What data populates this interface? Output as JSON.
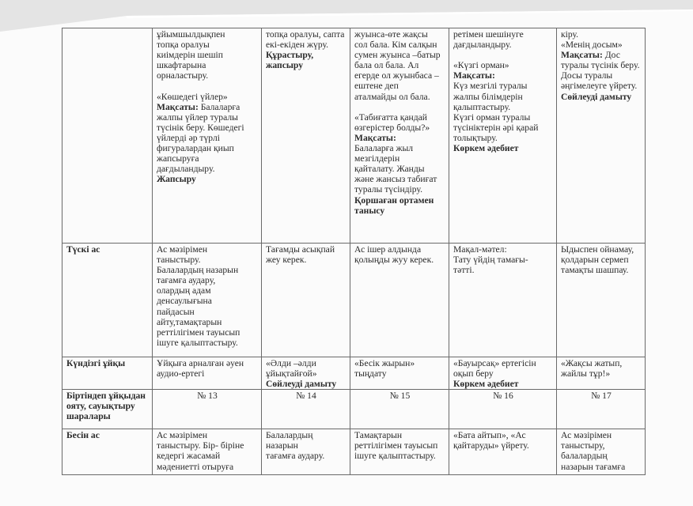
{
  "table": {
    "rows": [
      {
        "label": "",
        "cells": [
          [
            {
              "t": "ұйымшылдықпен\nтопқа оралуы\nкиімдерін шешіп\nшкафтарына\nорналастыру.\n\n«Көшедегі үйлер»\n"
            },
            {
              "t": "Мақсаты:",
              "b": true
            },
            {
              "t": " Балаларға\nжалпы үйлер туралы\nтүсінік беру. Көшедегі\nүйлерді әр түрлі\nфигуралардан қиып\nжапсыруға\nдағдыландыру.\n"
            },
            {
              "t": "Жапсыру",
              "b": true
            }
          ],
          [
            {
              "t": "топқа оралуы, сапта\nекі-екіден жүру.\n"
            },
            {
              "t": "Құрастыру,\nжапсыру",
              "b": true
            }
          ],
          [
            {
              "t": "жуынса-өте жақсы\nсол бала. Кім салқын\nсумен жуынса –батыр\nбала ол бала. Ал\nегерде ол жуынбаса –\nештене деп\nаталмайды ол бала.\n\n«Табиғатта қандай\nөзгерістер болды?»\n"
            },
            {
              "t": "Мақсаты:",
              "b": true
            },
            {
              "t": "\nБалаларға жыл\nмезгілдерін\nқайталату. Жанды\nжәне жансыз табиғат\nтуралы түсіндіру.\n"
            },
            {
              "t": "Қоршаған ортамен\nтанысу",
              "b": true
            }
          ],
          [
            {
              "t": "ретімен шешінуге\nдағдыландыру.\n\n«Күзгі орман»\n"
            },
            {
              "t": "Мақсаты:",
              "b": true
            },
            {
              "t": "\nКүз мезгілі туралы\nжалпы білімдерін\nқалыптастыру.\n Күзгі орман  туралы\nтүсініктерін әрі қарай\nтолықтыру.\n"
            },
            {
              "t": "Көркем әдебиет",
              "b": true
            }
          ],
          [
            {
              "t": "кіру.\n «Менің досым»\n"
            },
            {
              "t": "Мақсаты:",
              "b": true
            },
            {
              "t": " Дос\nтуралы түсінік беру.\nДосы туралы\nәңгімелеуге үйрету.\n"
            },
            {
              "t": "Сөйлеуді дамыту",
              "b": true
            }
          ]
        ]
      },
      {
        "label": "Түскі ас",
        "cells": [
          [
            {
              "t": "Ас мәзірімен\nтаныстыру.\nБалалардың назарын\nтағамға аудару,\nолардың адам\nденсаулығына\nпайдасын\nайту,тамақтарын\nреттілігімен тауысып\nішуге қалыптастыру."
            }
          ],
          [
            {
              "t": "Тағамды асықпай\nжеу керек."
            }
          ],
          [
            {
              "t": "Ас ішер алдында\nқолыңды жуу керек."
            }
          ],
          [
            {
              "t": "Мақал-мәтел:\nТату үйдің тамағы-\nтәтті."
            }
          ],
          [
            {
              "t": "Ыдыспен ойнамау,\nқолдарын сермеп\nтамақты шашпау."
            }
          ]
        ]
      },
      {
        "label": "Күндізгі ұйқы",
        "cells": [
          [
            {
              "t": "Ұйқыға арналған әуен\nаудио-ертегі"
            }
          ],
          [
            {
              "t": "«Әлди –әлди\nұйықтайғой»\n"
            },
            {
              "t": "Сөйлеуді дамыту",
              "b": true
            }
          ],
          [
            {
              "t": "«Бесік жырын»\nтыңдату"
            }
          ],
          [
            {
              "t": "«Бауырсақ» ертегісін\nоқып беру\n"
            },
            {
              "t": "Көркем әдебиет",
              "b": true
            }
          ],
          [
            {
              "t": "«Жақсы жатып,\nжайлы тұр!»"
            }
          ]
        ]
      },
      {
        "label": "Біртіндеп ұйқыдан\nояту, сауықтыру\nшаралары",
        "center": true,
        "cells": [
          [
            {
              "t": "№ 13"
            }
          ],
          [
            {
              "t": "№ 14"
            }
          ],
          [
            {
              "t": "№ 15"
            }
          ],
          [
            {
              "t": "№ 16"
            }
          ],
          [
            {
              "t": "№ 17"
            }
          ]
        ]
      },
      {
        "label": "Бесін ас",
        "cells": [
          [
            {
              "t": "Ас мәзірімен\nтаныстыру. Бір- біріне\nкедергі жасамай\nмәдениетті отыруға"
            }
          ],
          [
            {
              "t": "Балалардың назарын\nтағамға аудару."
            }
          ],
          [
            {
              "t": "Тамақтарын\nреттілігімен тауысып\nішуге қалыптастыру."
            }
          ],
          [
            {
              "t": "«Бата айтып»,  «Ас\nқайтаруды» үйрету."
            }
          ],
          [
            {
              "t": "Ас мәзірімен\nтаныстыру,\nбалалардың\nназарын тағамға"
            }
          ]
        ]
      }
    ]
  }
}
